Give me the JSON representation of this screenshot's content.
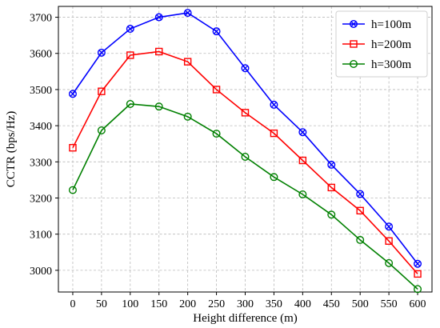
{
  "chart_data": {
    "type": "line",
    "title": "",
    "xlabel": "Height difference (m)",
    "ylabel": "CCTR (bps/Hz)",
    "xlim": [
      -25,
      625
    ],
    "ylim": [
      2940,
      3730
    ],
    "grid": true,
    "legend_position": "top-right",
    "x": [
      0,
      50,
      100,
      150,
      200,
      250,
      300,
      350,
      400,
      450,
      500,
      550,
      600
    ],
    "x_ticks": [
      0,
      50,
      100,
      150,
      200,
      250,
      300,
      350,
      400,
      450,
      500,
      550,
      600
    ],
    "y_ticks": [
      3000,
      3100,
      3200,
      3300,
      3400,
      3500,
      3600,
      3700
    ],
    "series": [
      {
        "name": "h=100m",
        "color": "#0000ff",
        "marker": "x-circle",
        "values": [
          3488,
          3602,
          3668,
          3700,
          3712,
          3661,
          3559,
          3458,
          3382,
          3292,
          3211,
          3121,
          3018
        ]
      },
      {
        "name": "h=200m",
        "color": "#ff0000",
        "marker": "square",
        "values": [
          3339,
          3495,
          3595,
          3605,
          3577,
          3500,
          3436,
          3379,
          3304,
          3229,
          3165,
          3081,
          2990
        ]
      },
      {
        "name": "h=300m",
        "color": "#008000",
        "marker": "circle",
        "values": [
          3222,
          3387,
          3460,
          3453,
          3425,
          3378,
          3314,
          3258,
          3210,
          3154,
          3084,
          3020,
          2948
        ]
      }
    ]
  }
}
